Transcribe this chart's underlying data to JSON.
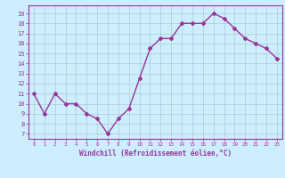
{
  "x": [
    0,
    1,
    2,
    3,
    4,
    5,
    6,
    7,
    8,
    9,
    10,
    11,
    12,
    13,
    14,
    15,
    16,
    17,
    18,
    19,
    20,
    21,
    22,
    23
  ],
  "y": [
    11,
    9,
    11,
    10,
    10,
    9,
    8.5,
    7,
    8.5,
    9.5,
    12.5,
    15.5,
    16.5,
    16.5,
    18,
    18,
    18,
    19,
    18.5,
    17.5,
    16.5,
    16,
    15.5,
    14.5
  ],
  "line_color": "#993399",
  "marker": "D",
  "marker_size": 2,
  "bg_color": "#cceeff",
  "grid_color": "#aacccc",
  "xlabel": "Windchill (Refroidissement éolien,°C)",
  "ylim": [
    6.5,
    19.8
  ],
  "yticks": [
    7,
    8,
    9,
    10,
    11,
    12,
    13,
    14,
    15,
    16,
    17,
    18,
    19
  ],
  "xticks": [
    0,
    1,
    2,
    3,
    4,
    5,
    6,
    7,
    8,
    9,
    10,
    11,
    12,
    13,
    14,
    15,
    16,
    17,
    18,
    19,
    20,
    21,
    22,
    23
  ],
  "xlim": [
    -0.5,
    23.5
  ],
  "line_width": 1.0
}
